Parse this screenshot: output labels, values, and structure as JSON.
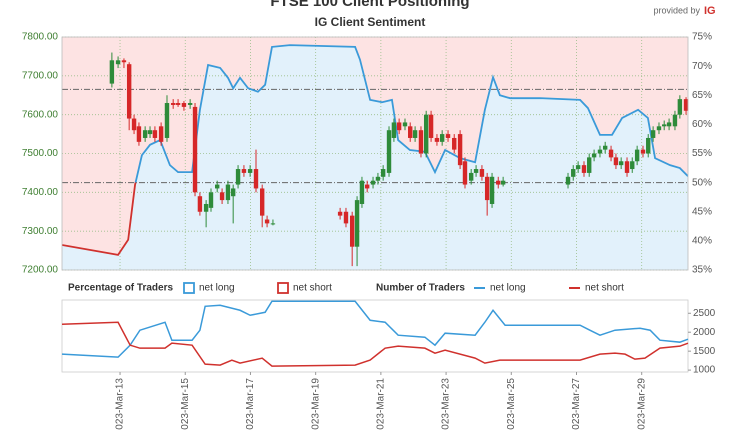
{
  "chart_data": [
    {
      "type": "candlestick",
      "title": "FTSE 100 Client Positioning",
      "subtitle": "IG Client Sentiment",
      "credit": "provided by",
      "credit_brand": "IG",
      "up_color": "#2e8b3a",
      "down_color": "#d62728",
      "xlim": [
        11.22,
        30.42
      ],
      "xticks": [
        13,
        15,
        17,
        19,
        21,
        23,
        25,
        27,
        29
      ],
      "ylim": [
        7200,
        7800
      ],
      "yticks": [
        {
          "value": 7200,
          "label": "7200.00"
        },
        {
          "value": 7300,
          "label": "7300.00"
        },
        {
          "value": 7400,
          "label": "7400.00"
        },
        {
          "value": 7500,
          "label": "7500.00"
        },
        {
          "value": 7600,
          "label": "7600.00"
        },
        {
          "value": 7700,
          "label": "7700.00"
        },
        {
          "value": 7800,
          "label": "7800.00"
        }
      ],
      "y2lim": [
        35,
        75
      ],
      "y2ticks": [
        {
          "value": 35,
          "label": "35%"
        },
        {
          "value": 40,
          "label": "40%"
        },
        {
          "value": 45,
          "label": "45%"
        },
        {
          "value": 50,
          "label": "50%"
        },
        {
          "value": 55,
          "label": "55%"
        },
        {
          "value": 60,
          "label": "60%"
        },
        {
          "value": 65,
          "label": "65%"
        },
        {
          "value": 70,
          "label": "70%"
        },
        {
          "value": 75,
          "label": "75%"
        }
      ],
      "grid": true,
      "reference_lines": [
        7425,
        7665
      ],
      "x": [
        12.75,
        12.94,
        13.12,
        13.28,
        13.43,
        13.58,
        13.77,
        13.92,
        14.07,
        14.26,
        14.44,
        14.63,
        14.78,
        14.96,
        15.15,
        15.3,
        15.45,
        15.64,
        15.79,
        15.98,
        16.13,
        16.31,
        16.47,
        16.62,
        16.8,
        16.99,
        17.17,
        17.36,
        17.51,
        17.69,
        19.75,
        19.93,
        20.12,
        20.27,
        20.42,
        20.58,
        20.76,
        20.91,
        21.07,
        21.25,
        21.4,
        21.56,
        21.74,
        21.9,
        22.05,
        22.23,
        22.39,
        22.54,
        22.72,
        22.88,
        23.06,
        23.25,
        23.43,
        23.58,
        23.77,
        23.92,
        24.1,
        24.26,
        24.41,
        24.6,
        24.75,
        26.74,
        26.9,
        27.05,
        27.23,
        27.39,
        27.54,
        27.72,
        27.88,
        28.06,
        28.21,
        28.37,
        28.55,
        28.71,
        28.86,
        29.04,
        29.2,
        29.35,
        29.53,
        29.69,
        29.84,
        30.02,
        30.17,
        30.36
      ],
      "open": [
        7680,
        7730,
        7740,
        7730,
        7590,
        7570,
        7540,
        7550,
        7560,
        7570,
        7540,
        7630,
        7630,
        7630,
        7625,
        7620,
        7390,
        7350,
        7360,
        7410,
        7400,
        7380,
        7390,
        7420,
        7460,
        7450,
        7460,
        7410,
        7330,
        7320,
        7350,
        7350,
        7340,
        7260,
        7370,
        7420,
        7420,
        7430,
        7440,
        7450,
        7540,
        7580,
        7570,
        7570,
        7540,
        7560,
        7500,
        7600,
        7540,
        7530,
        7550,
        7540,
        7550,
        7480,
        7430,
        7450,
        7460,
        7440,
        7370,
        7430,
        7420,
        7420,
        7440,
        7460,
        7470,
        7450,
        7490,
        7500,
        7510,
        7510,
        7490,
        7470,
        7480,
        7460,
        7480,
        7510,
        7500,
        7540,
        7560,
        7570,
        7570,
        7570,
        7600,
        7640
      ],
      "high": [
        7760,
        7750,
        7745,
        7735,
        7600,
        7580,
        7570,
        7570,
        7570,
        7580,
        7650,
        7640,
        7640,
        7635,
        7640,
        7630,
        7400,
        7380,
        7410,
        7430,
        7410,
        7430,
        7420,
        7470,
        7470,
        7470,
        7510,
        7420,
        7340,
        7330,
        7360,
        7360,
        7350,
        7390,
        7440,
        7430,
        7440,
        7450,
        7470,
        7570,
        7590,
        7590,
        7590,
        7580,
        7570,
        7570,
        7610,
        7610,
        7550,
        7560,
        7560,
        7550,
        7560,
        7490,
        7460,
        7470,
        7470,
        7450,
        7450,
        7440,
        7440,
        7450,
        7470,
        7480,
        7480,
        7500,
        7510,
        7520,
        7530,
        7520,
        7500,
        7490,
        7490,
        7490,
        7520,
        7520,
        7550,
        7570,
        7580,
        7585,
        7590,
        7610,
        7650,
        7645
      ],
      "low": [
        7670,
        7720,
        7720,
        7560,
        7550,
        7520,
        7530,
        7540,
        7530,
        7520,
        7530,
        7615,
        7620,
        7610,
        7615,
        7390,
        7340,
        7310,
        7350,
        7400,
        7370,
        7370,
        7320,
        7410,
        7440,
        7440,
        7400,
        7310,
        7310,
        7315,
        7330,
        7310,
        7210,
        7210,
        7360,
        7400,
        7410,
        7420,
        7430,
        7440,
        7530,
        7550,
        7560,
        7530,
        7530,
        7490,
        7490,
        7530,
        7520,
        7520,
        7530,
        7500,
        7460,
        7410,
        7420,
        7440,
        7430,
        7340,
        7360,
        7410,
        7415,
        7410,
        7430,
        7450,
        7440,
        7440,
        7480,
        7490,
        7500,
        7480,
        7460,
        7460,
        7440,
        7450,
        7470,
        7490,
        7490,
        7530,
        7550,
        7560,
        7560,
        7560,
        7590,
        7600
      ],
      "close": [
        7740,
        7740,
        7735,
        7590,
        7560,
        7530,
        7560,
        7560,
        7540,
        7530,
        7630,
        7625,
        7625,
        7620,
        7630,
        7400,
        7350,
        7370,
        7400,
        7420,
        7380,
        7420,
        7410,
        7460,
        7450,
        7460,
        7410,
        7340,
        7320,
        7320,
        7340,
        7320,
        7260,
        7380,
        7430,
        7410,
        7430,
        7440,
        7460,
        7560,
        7580,
        7560,
        7580,
        7540,
        7560,
        7500,
        7600,
        7540,
        7530,
        7550,
        7540,
        7510,
        7470,
        7420,
        7450,
        7460,
        7440,
        7380,
        7440,
        7420,
        7430,
        7440,
        7460,
        7470,
        7450,
        7490,
        7500,
        7510,
        7520,
        7490,
        7470,
        7480,
        7450,
        7480,
        7510,
        7500,
        7540,
        7560,
        7570,
        7575,
        7580,
        7600,
        7640,
        7610
      ],
      "series": [
        {
          "axis": "y2",
          "color": "#3a9ad9",
          "below_color": "#d0312d",
          "color_threshold": 50,
          "fill_above": "#fde3e3",
          "fill_below": "#e2f1fb",
          "x": [
            11.22,
            12.94,
            13.25,
            13.46,
            13.67,
            13.92,
            14.23,
            14.53,
            14.78,
            15.21,
            15.45,
            15.7,
            16.07,
            16.31,
            16.47,
            16.68,
            16.93,
            17.23,
            17.45,
            17.66,
            18.21,
            20.21,
            20.36,
            20.67,
            21.04,
            21.34,
            21.53,
            21.89,
            22.35,
            22.66,
            22.97,
            23.43,
            23.89,
            24.19,
            24.44,
            24.65,
            24.96,
            25.88,
            27.11,
            27.35,
            27.72,
            28.09,
            28.4,
            28.89,
            29.19,
            29.41,
            29.87,
            30.17,
            30.42
          ],
          "values": [
            39.3,
            37.6,
            40.2,
            49.6,
            54.7,
            56.5,
            57.3,
            53.0,
            51.8,
            51.8,
            62.5,
            70.2,
            69.7,
            68.0,
            66.2,
            68.0,
            66.2,
            65.6,
            66.8,
            73.3,
            73.6,
            73.3,
            71.1,
            64.2,
            63.8,
            64.2,
            57.3,
            55.6,
            55.3,
            51.8,
            55.6,
            54.2,
            53.5,
            62.5,
            68.1,
            65.0,
            64.5,
            64.5,
            64.2,
            62.8,
            58.2,
            58.2,
            61.1,
            62.5,
            61.1,
            54.2,
            53.0,
            52.5,
            51.1
          ]
        }
      ]
    },
    {
      "type": "line",
      "legend_groups": [
        {
          "title": "Percentage of Traders",
          "items": [
            {
              "name": "net long",
              "color": "#3a9ad9"
            },
            {
              "name": "net short",
              "color": "#d0312d"
            }
          ]
        }
      ],
      "legend_title": "Number of Traders",
      "xlim": [
        11.22,
        30.42
      ],
      "xticks": [
        {
          "value": 13,
          "label": "2023-Mar-13"
        },
        {
          "value": 15,
          "label": "2023-Mar-15"
        },
        {
          "value": 17,
          "label": "2023-Mar-17"
        },
        {
          "value": 19,
          "label": "2023-Mar-19"
        },
        {
          "value": 21,
          "label": "2023-Mar-21"
        },
        {
          "value": 23,
          "label": "2023-Mar-23"
        },
        {
          "value": 25,
          "label": "2023-Mar-25"
        },
        {
          "value": 27,
          "label": "2023-Mar-27"
        },
        {
          "value": 29,
          "label": "2023-Mar-29"
        }
      ],
      "ylim": [
        950,
        2850
      ],
      "yticks": [
        1000,
        1500,
        2000,
        2500
      ],
      "series": [
        {
          "name": "net long",
          "color": "#3a9ad9",
          "x": [
            11.22,
            12.94,
            13.31,
            13.61,
            14.38,
            14.59,
            15.21,
            15.45,
            15.61,
            16.07,
            16.68,
            16.99,
            17.45,
            17.66,
            20.21,
            20.67,
            21.13,
            21.53,
            22.35,
            22.66,
            22.97,
            23.89,
            24.19,
            24.44,
            24.81,
            27.11,
            27.41,
            27.72,
            28.18,
            28.95,
            29.26,
            29.56,
            30.17,
            30.42
          ],
          "values": [
            1421,
            1342,
            1658,
            2053,
            2263,
            1789,
            1789,
            2053,
            2684,
            2711,
            2579,
            2447,
            2526,
            2816,
            2816,
            2316,
            2263,
            1921,
            1868,
            1658,
            1974,
            1921,
            2263,
            2579,
            2184,
            2184,
            2053,
            1921,
            2053,
            2105,
            2053,
            1789,
            1737,
            1816
          ]
        },
        {
          "name": "net short",
          "color": "#d0312d",
          "x": [
            11.22,
            12.94,
            13.31,
            13.61,
            14.38,
            14.59,
            15.21,
            15.61,
            16.07,
            16.43,
            16.68,
            17.36,
            17.66,
            20.21,
            20.67,
            21.13,
            21.53,
            22.35,
            22.66,
            22.97,
            23.89,
            24.19,
            24.65,
            27.11,
            27.72,
            28.18,
            28.49,
            28.79,
            29.1,
            29.56,
            30.17,
            30.42
          ],
          "values": [
            2211,
            2263,
            1658,
            1579,
            1579,
            1711,
            1658,
            1158,
            1132,
            1263,
            1184,
            1316,
            1105,
            1132,
            1263,
            1579,
            1632,
            1579,
            1447,
            1526,
            1316,
            1184,
            1263,
            1263,
            1421,
            1447,
            1421,
            1289,
            1316,
            1579,
            1632,
            1711
          ]
        }
      ]
    }
  ]
}
